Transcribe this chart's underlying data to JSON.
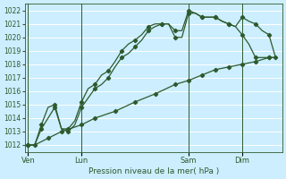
{
  "xlabel": "Pression niveau de la mer( hPa )",
  "bg_color": "#cceeff",
  "grid_color": "#ffffff",
  "line_color": "#2d5a2d",
  "ylim": [
    1011.5,
    1022.5
  ],
  "yticks": [
    1012,
    1013,
    1014,
    1015,
    1016,
    1017,
    1018,
    1019,
    1020,
    1021,
    1022
  ],
  "day_labels": [
    "Ven",
    "Lun",
    "Sam",
    "Dim"
  ],
  "day_positions": [
    0,
    8,
    24,
    32
  ],
  "xlim": [
    -0.5,
    38
  ],
  "line1_x": [
    0,
    1,
    2,
    3,
    4,
    5,
    6,
    7,
    8,
    9,
    10,
    11,
    12,
    13,
    14,
    15,
    16,
    17,
    18,
    19,
    20,
    21,
    22,
    23,
    24,
    25,
    26,
    27,
    28,
    29,
    30,
    31,
    32,
    33,
    34,
    35,
    36,
    37
  ],
  "line1_y": [
    1012.0,
    1012.0,
    1013.2,
    1014.0,
    1014.8,
    1013.2,
    1013.0,
    1013.5,
    1014.8,
    1015.5,
    1016.2,
    1016.5,
    1017.0,
    1017.8,
    1018.5,
    1018.8,
    1019.3,
    1019.8,
    1020.5,
    1020.8,
    1021.0,
    1021.0,
    1020.0,
    1020.0,
    1021.8,
    1021.8,
    1021.5,
    1021.5,
    1021.5,
    1021.2,
    1021.0,
    1020.8,
    1020.2,
    1019.5,
    1018.5,
    1018.5,
    1018.5,
    1018.5
  ],
  "line1_markers": [
    0,
    1,
    2,
    3,
    4,
    5,
    6,
    7,
    8,
    9,
    10,
    11,
    12,
    13,
    14,
    15,
    16,
    17,
    18,
    19,
    20,
    21,
    22,
    23,
    24,
    25,
    26,
    27,
    28,
    29,
    30,
    31,
    32,
    33,
    34,
    35,
    36,
    37
  ],
  "line2_x": [
    0,
    1,
    2,
    3,
    4,
    5,
    6,
    7,
    8,
    9,
    10,
    11,
    12,
    13,
    14,
    15,
    16,
    17,
    18,
    19,
    20,
    21,
    22,
    23,
    24,
    25,
    26,
    27,
    28,
    29,
    30,
    31,
    32,
    33,
    34,
    35,
    36,
    37
  ],
  "line2_y": [
    1012.0,
    1012.0,
    1013.5,
    1014.8,
    1015.0,
    1013.2,
    1013.2,
    1013.8,
    1015.2,
    1016.2,
    1016.5,
    1017.2,
    1017.5,
    1018.2,
    1019.0,
    1019.5,
    1019.8,
    1020.2,
    1020.8,
    1021.0,
    1021.0,
    1021.0,
    1020.5,
    1020.5,
    1022.0,
    1021.8,
    1021.5,
    1021.5,
    1021.5,
    1021.2,
    1021.0,
    1020.8,
    1021.5,
    1021.2,
    1021.0,
    1020.5,
    1020.2,
    1018.5
  ],
  "line3_x": [
    0,
    1,
    3,
    5,
    8,
    10,
    13,
    16,
    19,
    22,
    24,
    26,
    28,
    30,
    32,
    34,
    36,
    37
  ],
  "line3_y": [
    1012.0,
    1012.0,
    1012.5,
    1013.0,
    1013.5,
    1014.0,
    1014.5,
    1015.2,
    1015.8,
    1016.5,
    1016.8,
    1017.2,
    1017.6,
    1017.8,
    1018.0,
    1018.2,
    1018.5,
    1018.5
  ]
}
